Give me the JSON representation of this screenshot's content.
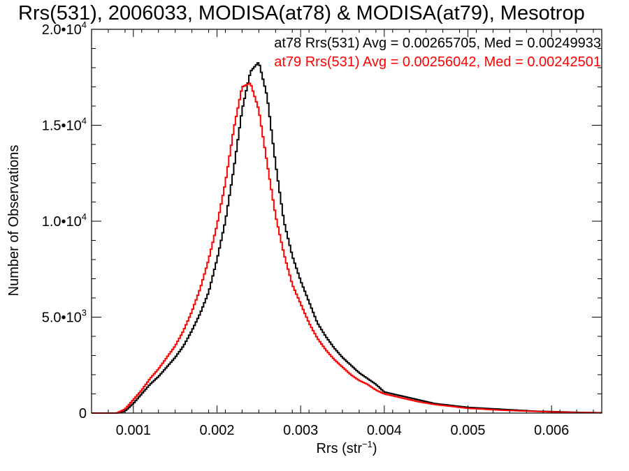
{
  "chart_data": {
    "type": "line",
    "title": "Rrs(531), 2006033, MODISA(at78) & MODISA(at79), Mesotrop",
    "xlabel_base": "Rrs (str",
    "xlabel_sup": "−1",
    "xlabel_close": ")",
    "ylabel": "Number of Observations",
    "xlim": [
      0.0005,
      0.0066
    ],
    "ylim": [
      0,
      20000
    ],
    "x_ticks": [
      {
        "value": 0.001,
        "label": "0.001"
      },
      {
        "value": 0.002,
        "label": "0.002"
      },
      {
        "value": 0.003,
        "label": "0.003"
      },
      {
        "value": 0.004,
        "label": "0.004"
      },
      {
        "value": 0.005,
        "label": "0.005"
      },
      {
        "value": 0.006,
        "label": "0.006"
      }
    ],
    "y_ticks": [
      {
        "value": 0,
        "label": "0",
        "exp": ""
      },
      {
        "value": 5000,
        "label": "5.0•10",
        "exp": "3"
      },
      {
        "value": 10000,
        "label": "1.0•10",
        "exp": "4"
      },
      {
        "value": 15000,
        "label": "1.5•10",
        "exp": "4"
      },
      {
        "value": 20000,
        "label": "2.0•10",
        "exp": "4"
      }
    ],
    "annotations": [
      {
        "text": "at78 Rrs(531) Avg = 0.00265705, Med = 0.00249933",
        "color": "#000000"
      },
      {
        "text": "at79 Rrs(531) Avg = 0.00256042, Med = 0.00242501",
        "color": "#ff0000"
      }
    ],
    "series": [
      {
        "color": "#000000",
        "x": [
          0.0005,
          0.0008,
          0.0009,
          0.001,
          0.0011,
          0.0012,
          0.0013,
          0.0014,
          0.0015,
          0.0016,
          0.0017,
          0.0018,
          0.0019,
          0.002,
          0.0021,
          0.0022,
          0.0023,
          0.0024,
          0.0025,
          0.0026,
          0.0027,
          0.0028,
          0.0029,
          0.003,
          0.0031,
          0.0032,
          0.0033,
          0.0034,
          0.0035,
          0.0036,
          0.0037,
          0.0038,
          0.0039,
          0.004,
          0.0042,
          0.0044,
          0.0046,
          0.0048,
          0.005,
          0.0052,
          0.0054,
          0.0056,
          0.0058,
          0.006,
          0.0063,
          0.0066
        ],
        "y": [
          0,
          0,
          100,
          500,
          1000,
          1500,
          1900,
          2400,
          2900,
          3500,
          4300,
          5200,
          6300,
          8000,
          10000,
          12700,
          15800,
          17800,
          18300,
          16500,
          13000,
          10000,
          8200,
          6900,
          5800,
          4700,
          4000,
          3400,
          2900,
          2500,
          2100,
          1800,
          1500,
          1100,
          900,
          700,
          500,
          400,
          300,
          250,
          200,
          150,
          100,
          80,
          40,
          20
        ]
      },
      {
        "color": "#ff0000",
        "x": [
          0.0005,
          0.0008,
          0.0009,
          0.001,
          0.0011,
          0.0012,
          0.0013,
          0.0014,
          0.0015,
          0.0016,
          0.0017,
          0.0018,
          0.0019,
          0.002,
          0.0021,
          0.0022,
          0.0023,
          0.0024,
          0.0025,
          0.0026,
          0.0027,
          0.0028,
          0.0029,
          0.003,
          0.0031,
          0.0032,
          0.0033,
          0.0034,
          0.0035,
          0.0036,
          0.0037,
          0.0038,
          0.0039,
          0.004,
          0.0042,
          0.0044,
          0.0046,
          0.0048,
          0.005,
          0.0052,
          0.0054,
          0.0056,
          0.0058,
          0.006,
          0.0063,
          0.0066
        ],
        "y": [
          0,
          0,
          200,
          700,
          1200,
          1800,
          2300,
          2900,
          3500,
          4300,
          5300,
          6500,
          8000,
          9800,
          12000,
          14800,
          17000,
          17200,
          15800,
          13000,
          10300,
          8300,
          6700,
          5700,
          4700,
          3900,
          3300,
          2800,
          2400,
          2000,
          1700,
          1500,
          1200,
          1000,
          800,
          600,
          450,
          350,
          250,
          200,
          150,
          120,
          90,
          60,
          30,
          15
        ]
      }
    ]
  }
}
